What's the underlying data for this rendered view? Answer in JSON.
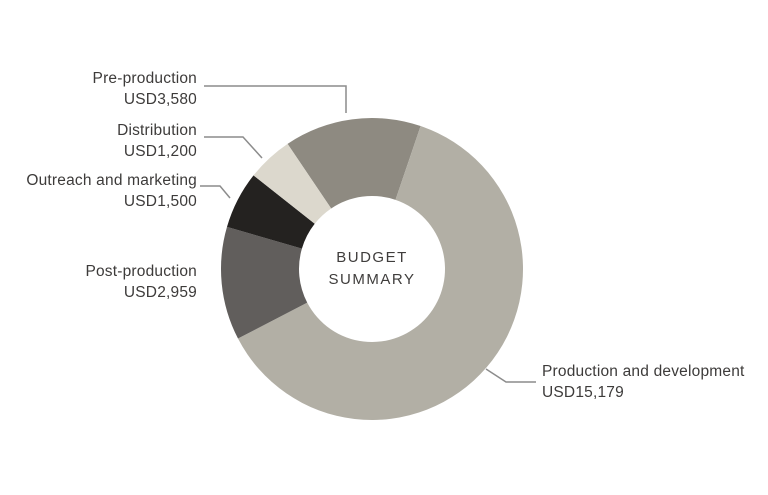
{
  "chart_data": {
    "type": "pie",
    "subtype": "donut",
    "title": "BUDGET SUMMARY",
    "center_label_lines": [
      "BUDGET",
      "SUMMARY"
    ],
    "currency": "USD",
    "start_angle_deg": -34,
    "direction": "clockwise",
    "segments": [
      {
        "label": "Pre-production",
        "amount_label": "USD3,580",
        "value": 3580,
        "color": "#8e8a81"
      },
      {
        "label": "Production and development",
        "amount_label": "USD15,179",
        "value": 15179,
        "color": "#b2afa5"
      },
      {
        "label": "Post-production",
        "amount_label": "USD2,959",
        "value": 2959,
        "color": "#615e5c"
      },
      {
        "label": "Outreach and marketing",
        "amount_label": "USD1,500",
        "value": 1500,
        "color": "#242220"
      },
      {
        "label": "Distribution",
        "amount_label": "USD1,200",
        "value": 1200,
        "color": "#dcd8cd"
      }
    ],
    "hole_fill": "#ffffff",
    "background": "#ffffff",
    "leader_line_color": "#8c8c8c",
    "text_color": "#3d3b3a"
  }
}
